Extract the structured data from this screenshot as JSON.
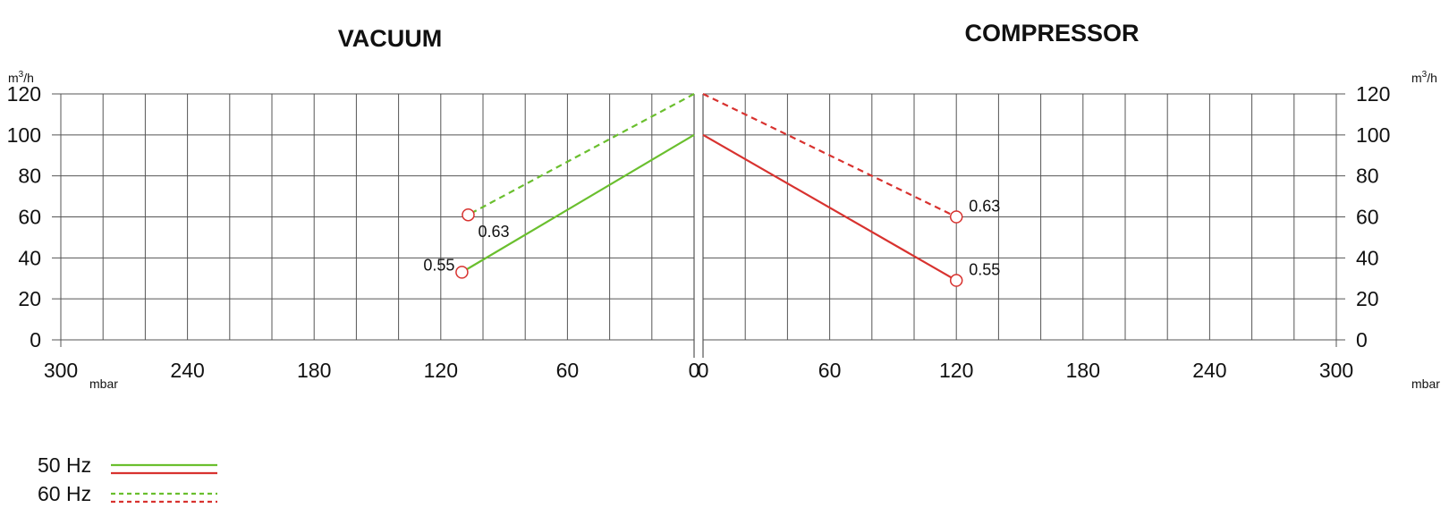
{
  "chart_data": [
    {
      "type": "line",
      "title": "VACUUM",
      "xlabel": "mbar",
      "ylabel": "m3/h",
      "xlim": [
        300,
        0
      ],
      "ylim": [
        0,
        120
      ],
      "x_ticks": [
        "300",
        "240",
        "180",
        "120",
        "60",
        "0"
      ],
      "y_ticks": [
        "0",
        "20",
        "40",
        "60",
        "80",
        "100",
        "120"
      ],
      "grid": true,
      "series": [
        {
          "name": "50 Hz",
          "color": "#6abf2e",
          "style": "solid",
          "x": [
            0,
            110
          ],
          "y": [
            100,
            33
          ],
          "end_label": "0.55"
        },
        {
          "name": "60 Hz",
          "color": "#6abf2e",
          "style": "dashed",
          "x": [
            0,
            107
          ],
          "y": [
            120,
            61
          ],
          "end_label": "0.63"
        }
      ]
    },
    {
      "type": "line",
      "title": "COMPRESSOR",
      "xlabel": "mbar",
      "ylabel": "m3/h",
      "xlim": [
        0,
        300
      ],
      "ylim": [
        0,
        120
      ],
      "x_ticks": [
        "0",
        "60",
        "120",
        "180",
        "240",
        "300"
      ],
      "y_ticks": [
        "0",
        "20",
        "40",
        "60",
        "80",
        "100",
        "120"
      ],
      "grid": true,
      "series": [
        {
          "name": "50 Hz",
          "color": "#d8322f",
          "style": "solid",
          "x": [
            0,
            120
          ],
          "y": [
            100,
            29
          ],
          "end_label": "0.55"
        },
        {
          "name": "60 Hz",
          "color": "#d8322f",
          "style": "dashed",
          "x": [
            0,
            120
          ],
          "y": [
            120,
            60
          ],
          "end_label": "0.63"
        }
      ]
    }
  ],
  "axis": {
    "y_unit_base": "m",
    "y_unit_sup": "3",
    "y_unit_rest": "/h",
    "x_unit": "mbar"
  },
  "legend": {
    "position": "bottom-left",
    "items": [
      {
        "label": "50 Hz",
        "style": "solid",
        "colors": [
          "#6abf2e",
          "#d8322f"
        ]
      },
      {
        "label": "60 Hz",
        "style": "dashed",
        "colors": [
          "#6abf2e",
          "#d8322f"
        ]
      }
    ]
  }
}
